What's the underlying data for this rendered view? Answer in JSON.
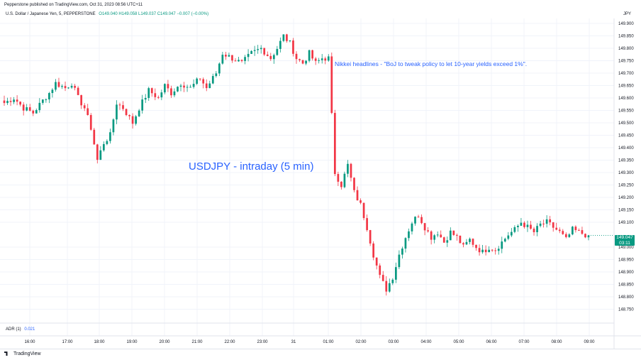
{
  "header": {
    "published_line": "Pepperstone published on TradingView.com, Oct 31, 2023 08:56 UTC+11",
    "symbol": "U.S. Dollar / Japanese Yen, 5, PEPPERSTONE",
    "ohlc": "O149.040 H149.058 L149.037 C149.047 −0.007 (−0.00%)",
    "currency": "JPY"
  },
  "last_price": {
    "price": "149.047",
    "countdown": "03:11",
    "color": "#089981"
  },
  "annotation": "Nikkei headlines - \"BoJ to tweak policy to let 10-year yields exceed 1%\".",
  "indicator": {
    "name": "ADR (1)",
    "value": "0.021"
  },
  "footer": {
    "brand": "TradingView"
  },
  "colors": {
    "up": "#089981",
    "down": "#f23645",
    "accent": "#2962ff"
  },
  "chart_data": {
    "type": "candlestick",
    "title": "USDJPY - intraday (5 min)",
    "ylim": [
      148.72,
      149.92
    ],
    "y_ticks": [
      "149.900",
      "149.850",
      "149.800",
      "149.750",
      "149.700",
      "149.650",
      "149.600",
      "149.550",
      "149.500",
      "149.450",
      "149.400",
      "149.350",
      "149.300",
      "149.250",
      "149.200",
      "149.150",
      "149.100",
      "149.000",
      "148.950",
      "148.900",
      "148.850",
      "148.800",
      "148.750"
    ],
    "x_ticks": [
      "16:00",
      "17:00",
      "18:00",
      "19:00",
      "20:00",
      "21:00",
      "22:00",
      "23:00",
      "31",
      "01:00",
      "02:00",
      "03:00",
      "04:00",
      "05:00",
      "06:00",
      "07:00",
      "08:00",
      "09:00"
    ],
    "grid": true,
    "price_path": [
      [
        0,
        149.58
      ],
      [
        3,
        149.6
      ],
      [
        6,
        149.56
      ],
      [
        9,
        149.54
      ],
      [
        12,
        149.59
      ],
      [
        14,
        149.62
      ],
      [
        16,
        149.66
      ],
      [
        19,
        149.64
      ],
      [
        21,
        149.66
      ],
      [
        23,
        149.6
      ],
      [
        25,
        149.56
      ],
      [
        27,
        149.48
      ],
      [
        29,
        149.35
      ],
      [
        31,
        149.42
      ],
      [
        33,
        149.45
      ],
      [
        35,
        149.58
      ],
      [
        37,
        149.56
      ],
      [
        40,
        149.5
      ],
      [
        42,
        149.56
      ],
      [
        45,
        149.63
      ],
      [
        48,
        149.6
      ],
      [
        50,
        149.65
      ],
      [
        52,
        149.62
      ],
      [
        55,
        149.66
      ],
      [
        58,
        149.64
      ],
      [
        61,
        149.68
      ],
      [
        63,
        149.64
      ],
      [
        66,
        149.7
      ],
      [
        68,
        149.78
      ],
      [
        71,
        149.76
      ],
      [
        74,
        149.74
      ],
      [
        77,
        149.78
      ],
      [
        80,
        149.8
      ],
      [
        83,
        149.76
      ],
      [
        85,
        149.8
      ],
      [
        87,
        149.85
      ],
      [
        89,
        149.82
      ],
      [
        91,
        149.76
      ],
      [
        93,
        149.74
      ],
      [
        95,
        149.78
      ],
      [
        97,
        149.74
      ],
      [
        99,
        149.76
      ],
      [
        101,
        149.76
      ],
      [
        103,
        149.3
      ],
      [
        105,
        149.25
      ],
      [
        107,
        149.33
      ],
      [
        109,
        149.22
      ],
      [
        111,
        149.17
      ],
      [
        113,
        149.08
      ],
      [
        115,
        148.97
      ],
      [
        117,
        148.88
      ],
      [
        119,
        148.83
      ],
      [
        121,
        148.88
      ],
      [
        123,
        148.97
      ],
      [
        125,
        149.04
      ],
      [
        127,
        149.1
      ],
      [
        129,
        149.13
      ],
      [
        131,
        149.08
      ],
      [
        133,
        149.04
      ],
      [
        135,
        149.06
      ],
      [
        137,
        149.02
      ],
      [
        139,
        149.06
      ],
      [
        141,
        149.04
      ],
      [
        143,
        149.0
      ],
      [
        145,
        149.03
      ],
      [
        147,
        149.0
      ],
      [
        149,
        148.98
      ],
      [
        151,
        149.0
      ],
      [
        153,
        148.99
      ],
      [
        155,
        149.02
      ],
      [
        157,
        149.05
      ],
      [
        159,
        149.07
      ],
      [
        161,
        149.1
      ],
      [
        163,
        149.08
      ],
      [
        165,
        149.06
      ],
      [
        167,
        149.09
      ],
      [
        169,
        149.1
      ],
      [
        171,
        149.08
      ],
      [
        173,
        149.06
      ],
      [
        175,
        149.03
      ],
      [
        177,
        149.07
      ],
      [
        179,
        149.06
      ],
      [
        181,
        149.05
      ],
      [
        182,
        149.047
      ]
    ]
  }
}
